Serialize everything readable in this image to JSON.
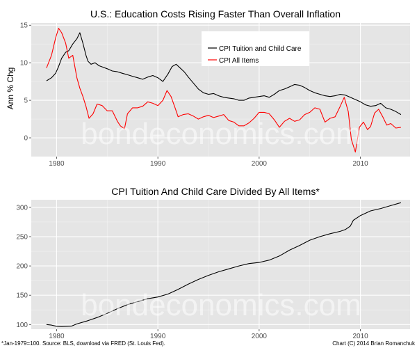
{
  "chart_data": [
    {
      "type": "line",
      "title": "U.S.: Education Costs Rising Faster Than Overall Inflation",
      "xlabel": "",
      "ylabel": "Ann % Chg",
      "xlim": [
        1977.5,
        2014.9
      ],
      "ylim": [
        -2.5,
        15.3
      ],
      "x_ticks": [
        1980,
        1990,
        2000,
        2010
      ],
      "y_ticks": [
        0,
        5,
        10,
        15
      ],
      "grid": true,
      "legend_position": "top-right",
      "series": [
        {
          "name": "CPI Tuition and Child Care",
          "color": "#000000",
          "x": [
            1979.0,
            1979.5,
            1979.9,
            1980.2,
            1980.5,
            1980.9,
            1981.2,
            1981.6,
            1982.0,
            1982.3,
            1982.6,
            1982.9,
            1983.1,
            1983.4,
            1983.8,
            1984.2,
            1984.6,
            1985.0,
            1985.5,
            1986.0,
            1986.5,
            1987.0,
            1987.5,
            1988.0,
            1988.5,
            1989.0,
            1989.5,
            1990.0,
            1990.5,
            1991.0,
            1991.4,
            1991.8,
            1992.2,
            1992.6,
            1993.0,
            1993.5,
            1994.0,
            1994.5,
            1995.0,
            1995.5,
            1996.0,
            1996.5,
            1997.0,
            1997.5,
            1998.0,
            1998.5,
            1999.0,
            1999.5,
            2000.0,
            2000.5,
            2001.0,
            2001.5,
            2002.0,
            2002.5,
            2003.0,
            2003.5,
            2004.0,
            2004.5,
            2005.0,
            2005.5,
            2006.0,
            2006.5,
            2007.0,
            2007.5,
            2008.0,
            2008.5,
            2009.0,
            2009.5,
            2010.0,
            2010.5,
            2011.0,
            2011.5,
            2012.0,
            2012.5,
            2013.0,
            2013.5,
            2014.0
          ],
          "values": [
            7.6,
            8.0,
            8.6,
            9.5,
            10.6,
            11.4,
            11.6,
            12.5,
            13.2,
            14.0,
            12.6,
            11.0,
            10.2,
            9.8,
            10.0,
            9.6,
            9.4,
            9.2,
            8.9,
            8.8,
            8.6,
            8.4,
            8.2,
            8.0,
            7.8,
            8.1,
            8.3,
            8.0,
            7.5,
            8.5,
            9.5,
            9.8,
            9.3,
            8.8,
            8.1,
            7.3,
            6.5,
            6.0,
            5.8,
            5.9,
            5.6,
            5.4,
            5.3,
            5.2,
            5.0,
            5.0,
            5.3,
            5.4,
            5.5,
            5.6,
            5.4,
            5.8,
            6.3,
            6.5,
            6.8,
            7.1,
            7.0,
            6.7,
            6.3,
            6.0,
            5.8,
            5.6,
            5.5,
            5.6,
            5.8,
            5.7,
            5.4,
            5.1,
            4.8,
            4.4,
            4.2,
            4.3,
            4.6,
            4.0,
            3.8,
            3.5,
            3.1
          ]
        },
        {
          "name": "CPI All Items",
          "color": "#ff0000",
          "x": [
            1979.0,
            1979.5,
            1979.9,
            1980.2,
            1980.5,
            1980.9,
            1981.2,
            1981.6,
            1982.0,
            1982.3,
            1982.6,
            1982.9,
            1983.2,
            1983.6,
            1984.0,
            1984.5,
            1985.0,
            1985.5,
            1986.0,
            1986.3,
            1986.7,
            1987.0,
            1987.5,
            1988.0,
            1988.5,
            1989.0,
            1989.5,
            1990.0,
            1990.5,
            1990.9,
            1991.3,
            1991.7,
            1992.0,
            1992.5,
            1993.0,
            1993.5,
            1994.0,
            1994.5,
            1995.0,
            1995.5,
            1996.0,
            1996.5,
            1997.0,
            1997.5,
            1998.0,
            1998.5,
            1999.0,
            1999.5,
            2000.0,
            2000.5,
            2001.0,
            2001.5,
            2002.0,
            2002.5,
            2003.0,
            2003.5,
            2004.0,
            2004.5,
            2005.0,
            2005.5,
            2006.0,
            2006.5,
            2007.0,
            2007.5,
            2008.0,
            2008.4,
            2008.8,
            2009.1,
            2009.5,
            2009.9,
            2010.3,
            2010.7,
            2011.0,
            2011.4,
            2011.8,
            2012.2,
            2012.6,
            2013.0,
            2013.5,
            2014.0
          ],
          "values": [
            9.3,
            11.0,
            13.3,
            14.6,
            14.0,
            12.6,
            10.6,
            11.0,
            8.0,
            6.6,
            5.5,
            4.2,
            2.6,
            3.2,
            4.5,
            4.3,
            3.6,
            3.6,
            2.2,
            1.6,
            1.2,
            3.2,
            4.0,
            4.0,
            4.2,
            4.8,
            4.6,
            4.3,
            5.0,
            6.3,
            5.5,
            4.0,
            2.8,
            3.1,
            3.2,
            2.9,
            2.5,
            2.8,
            3.0,
            2.7,
            2.9,
            3.1,
            2.3,
            2.1,
            1.6,
            1.6,
            2.0,
            2.6,
            3.4,
            3.4,
            3.2,
            2.4,
            1.4,
            2.2,
            2.6,
            2.2,
            2.4,
            3.1,
            3.4,
            4.0,
            3.8,
            2.1,
            2.6,
            2.8,
            4.2,
            5.4,
            3.5,
            -0.2,
            -1.9,
            1.4,
            2.1,
            1.1,
            1.5,
            3.3,
            3.8,
            2.8,
            1.7,
            1.9,
            1.3,
            1.4
          ]
        }
      ],
      "watermark": "bondeconomics.com"
    },
    {
      "type": "line",
      "title": "CPI Tuition And Child Care Divided By All Items*",
      "xlabel": "",
      "ylabel": "",
      "xlim": [
        1977.5,
        2014.9
      ],
      "ylim": [
        92,
        313
      ],
      "x_ticks": [
        1980,
        1990,
        2000,
        2010
      ],
      "y_ticks": [
        100,
        150,
        200,
        250,
        300
      ],
      "grid": true,
      "series": [
        {
          "name": "CPI Tuition and Child Care / All Items",
          "color": "#000000",
          "x": [
            1979.0,
            1979.5,
            1980.0,
            1980.5,
            1981.0,
            1981.5,
            1982.0,
            1983.0,
            1984.0,
            1985.0,
            1986.0,
            1987.0,
            1988.0,
            1989.0,
            1990.0,
            1991.0,
            1992.0,
            1993.0,
            1994.0,
            1995.0,
            1996.0,
            1997.0,
            1998.0,
            1999.0,
            2000.0,
            2001.0,
            2002.0,
            2003.0,
            2004.0,
            2005.0,
            2006.0,
            2007.0,
            2008.0,
            2008.5,
            2009.0,
            2009.3,
            2010.0,
            2011.0,
            2012.0,
            2013.0,
            2014.0
          ],
          "values": [
            100,
            99,
            97,
            96.5,
            97,
            97.5,
            101,
            106,
            112,
            119,
            127,
            134,
            139,
            144,
            147,
            152,
            160,
            169,
            177,
            184,
            190,
            195,
            200,
            204,
            206,
            210,
            217,
            227,
            235,
            244,
            250,
            255,
            259,
            262,
            268,
            278,
            286,
            294,
            298,
            303,
            308
          ]
        }
      ],
      "watermark": "bondeconomics.com"
    }
  ],
  "footnote_left": "*Jan-1979=100. Source: BLS, download via FRED (St. Louis Fed).",
  "footnote_right": "Chart (C) 2014 Brian Romanchuk"
}
